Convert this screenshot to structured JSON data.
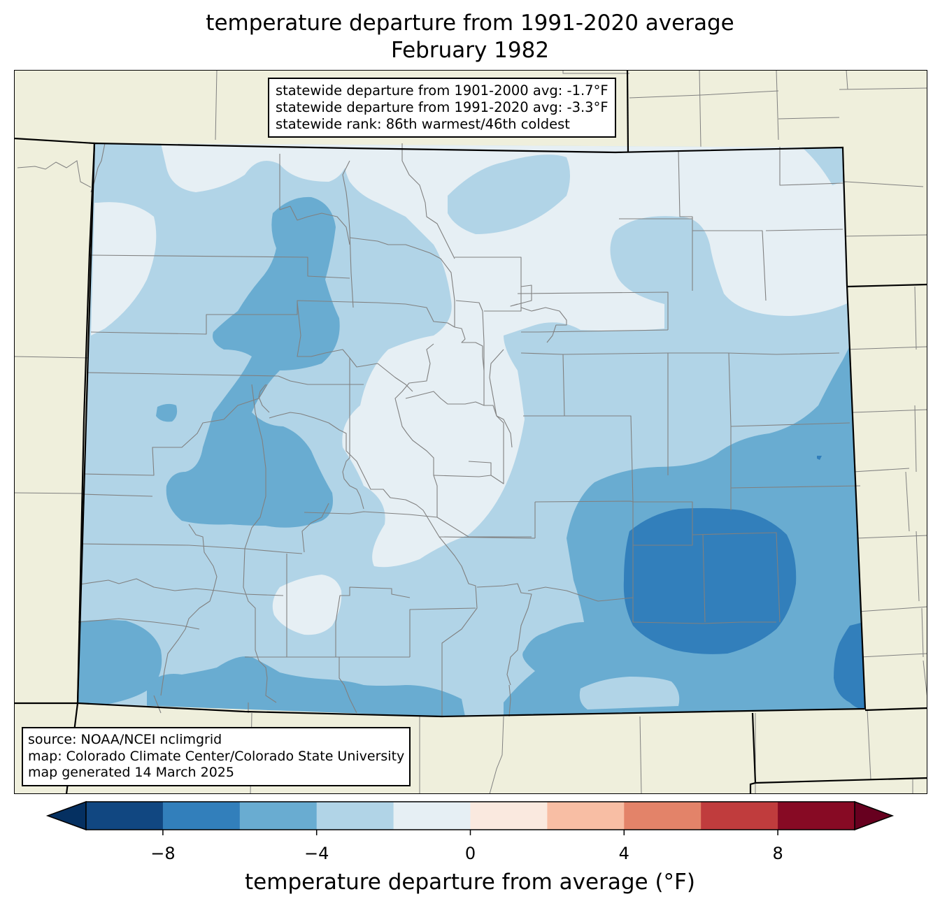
{
  "title": {
    "line1": "temperature departure from 1991-2020 average",
    "line2": "February 1982"
  },
  "stats": {
    "line1": "statewide departure from 1901-2000 avg: -1.7°F",
    "line2": "statewide departure from 1991-2020 avg: -3.3°F",
    "line3": "statewide rank: 86th warmest/46th coldest"
  },
  "source": {
    "line1": "source: NOAA/NCEI nclimgrid",
    "line2": "map: Colorado Climate Center/Colorado State University",
    "line3": "map generated 14 March 2025"
  },
  "colorbar": {
    "label": "temperature departure from average (°F)",
    "min": -10,
    "max": 10,
    "step": 2,
    "ticks": [
      {
        "value": -8,
        "label": "−8"
      },
      {
        "value": -4,
        "label": "−4"
      },
      {
        "value": 0,
        "label": "0"
      },
      {
        "value": 4,
        "label": "4"
      },
      {
        "value": 8,
        "label": "8"
      }
    ],
    "under_color": "#053061",
    "over_color": "#67001f",
    "bins": [
      {
        "from": -10,
        "to": -8,
        "color": "#114781"
      },
      {
        "from": -8,
        "to": -6,
        "color": "#327fbb"
      },
      {
        "from": -6,
        "to": -4,
        "color": "#69acd1"
      },
      {
        "from": -4,
        "to": -2,
        "color": "#b1d4e7"
      },
      {
        "from": -2,
        "to": 0,
        "color": "#e6eff4"
      },
      {
        "from": 0,
        "to": 2,
        "color": "#fae9df"
      },
      {
        "from": 2,
        "to": 4,
        "color": "#f8bea4"
      },
      {
        "from": 4,
        "to": 6,
        "color": "#e38369"
      },
      {
        "from": 6,
        "to": 8,
        "color": "#c03c3d"
      },
      {
        "from": 8,
        "to": 10,
        "color": "#870a24"
      }
    ]
  },
  "map_colors": {
    "land": "#efefdc",
    "state_border": "#000000",
    "county_border": "#808080"
  }
}
